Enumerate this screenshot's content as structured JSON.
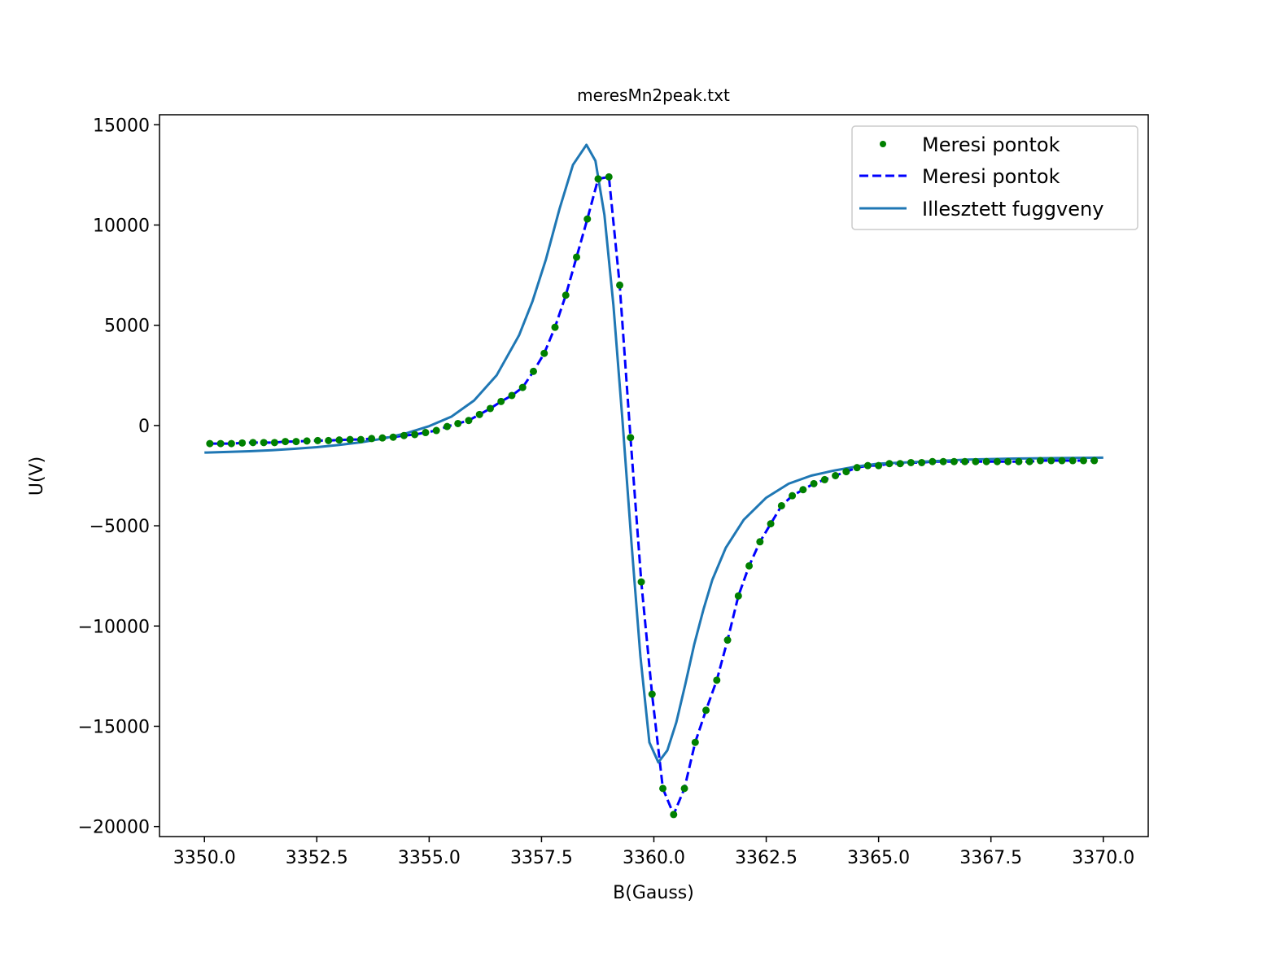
{
  "chart_data": {
    "type": "line",
    "title": "meresMn2peak.txt",
    "xlabel": "B(Gauss)",
    "ylabel": "U(V)",
    "xlim": [
      3349.0,
      3371.0
    ],
    "ylim": [
      -20500,
      15500
    ],
    "xticks": [
      3350.0,
      3352.5,
      3355.0,
      3357.5,
      3360.0,
      3362.5,
      3365.0,
      3367.5,
      3370.0
    ],
    "xtick_labels": [
      "3350.0",
      "3352.5",
      "3355.0",
      "3357.5",
      "3360.0",
      "3362.5",
      "3365.0",
      "3367.5",
      "3370.0"
    ],
    "yticks": [
      15000,
      10000,
      5000,
      0,
      -5000,
      -10000,
      -15000,
      -20000
    ],
    "ytick_labels": [
      "15000",
      "10000",
      "5000",
      "0",
      "−5000",
      "−10000",
      "−15000",
      "−20000"
    ],
    "grid": false,
    "legend_position": "top-right",
    "series": [
      {
        "name": "Meresi pontok",
        "style": "markers",
        "color": "#008000",
        "x": [
          3350.12,
          3350.36,
          3350.6,
          3350.84,
          3351.08,
          3351.32,
          3351.56,
          3351.8,
          3352.04,
          3352.28,
          3352.52,
          3352.76,
          3353.0,
          3353.24,
          3353.48,
          3353.72,
          3353.96,
          3354.2,
          3354.44,
          3354.68,
          3354.92,
          3355.16,
          3355.4,
          3355.64,
          3355.88,
          3356.12,
          3356.36,
          3356.6,
          3356.84,
          3357.08,
          3357.32,
          3357.56,
          3357.8,
          3358.04,
          3358.28,
          3358.52,
          3358.76,
          3359.0,
          3359.24,
          3359.48,
          3359.72,
          3359.96,
          3360.2,
          3360.44,
          3360.68,
          3360.92,
          3361.16,
          3361.4,
          3361.64,
          3361.88,
          3362.12,
          3362.36,
          3362.6,
          3362.84,
          3363.08,
          3363.32,
          3363.56,
          3363.8,
          3364.04,
          3364.28,
          3364.52,
          3364.76,
          3365.0,
          3365.24,
          3365.48,
          3365.72,
          3365.96,
          3366.2,
          3366.44,
          3366.68,
          3366.92,
          3367.16,
          3367.4,
          3367.64,
          3367.88,
          3368.12,
          3368.36,
          3368.6,
          3368.84,
          3369.08,
          3369.32,
          3369.56,
          3369.8
        ],
        "y": [
          -900,
          -900,
          -900,
          -870,
          -850,
          -850,
          -850,
          -800,
          -800,
          -770,
          -750,
          -750,
          -720,
          -700,
          -700,
          -650,
          -620,
          -580,
          -500,
          -450,
          -350,
          -250,
          -50,
          100,
          250,
          550,
          850,
          1200,
          1500,
          1900,
          2700,
          3600,
          4900,
          6500,
          8400,
          10300,
          12300,
          12400,
          7000,
          -600,
          -7800,
          -13400,
          -18100,
          -19400,
          -18100,
          -15800,
          -14200,
          -12700,
          -10700,
          -8500,
          -7000,
          -5800,
          -4900,
          -4000,
          -3500,
          -3200,
          -2900,
          -2700,
          -2500,
          -2300,
          -2100,
          -2000,
          -2000,
          -1900,
          -1900,
          -1850,
          -1850,
          -1800,
          -1800,
          -1800,
          -1800,
          -1800,
          -1800,
          -1800,
          -1800,
          -1800,
          -1800,
          -1750,
          -1750,
          -1750,
          -1750,
          -1750,
          -1750
        ]
      },
      {
        "name": "Meresi pontok",
        "style": "dashed",
        "color": "#0000ff"
      },
      {
        "name": "Illesztett fuggveny",
        "style": "solid",
        "color": "#1f77b4",
        "x": [
          3350.0,
          3350.5,
          3351.0,
          3351.5,
          3352.0,
          3352.5,
          3353.0,
          3353.5,
          3354.0,
          3354.5,
          3355.0,
          3355.5,
          3356.0,
          3356.5,
          3357.0,
          3357.3,
          3357.6,
          3357.9,
          3358.2,
          3358.5,
          3358.7,
          3358.9,
          3359.1,
          3359.3,
          3359.5,
          3359.7,
          3359.9,
          3360.1,
          3360.3,
          3360.5,
          3360.7,
          3360.9,
          3361.1,
          3361.3,
          3361.6,
          3362.0,
          3362.5,
          3363.0,
          3363.5,
          3364.0,
          3364.5,
          3365.0,
          3365.5,
          3366.0,
          3367.0,
          3368.0,
          3369.0,
          3370.0
        ],
        "y": [
          -1350,
          -1320,
          -1280,
          -1230,
          -1160,
          -1080,
          -970,
          -830,
          -640,
          -380,
          -30,
          450,
          1250,
          2500,
          4500,
          6200,
          8300,
          10800,
          13000,
          14000,
          13200,
          10500,
          6000,
          300,
          -5800,
          -11500,
          -15800,
          -16800,
          -16200,
          -14800,
          -12900,
          -10900,
          -9200,
          -7700,
          -6100,
          -4700,
          -3600,
          -2900,
          -2500,
          -2250,
          -2050,
          -1900,
          -1850,
          -1800,
          -1700,
          -1650,
          -1620,
          -1600
        ]
      }
    ]
  }
}
